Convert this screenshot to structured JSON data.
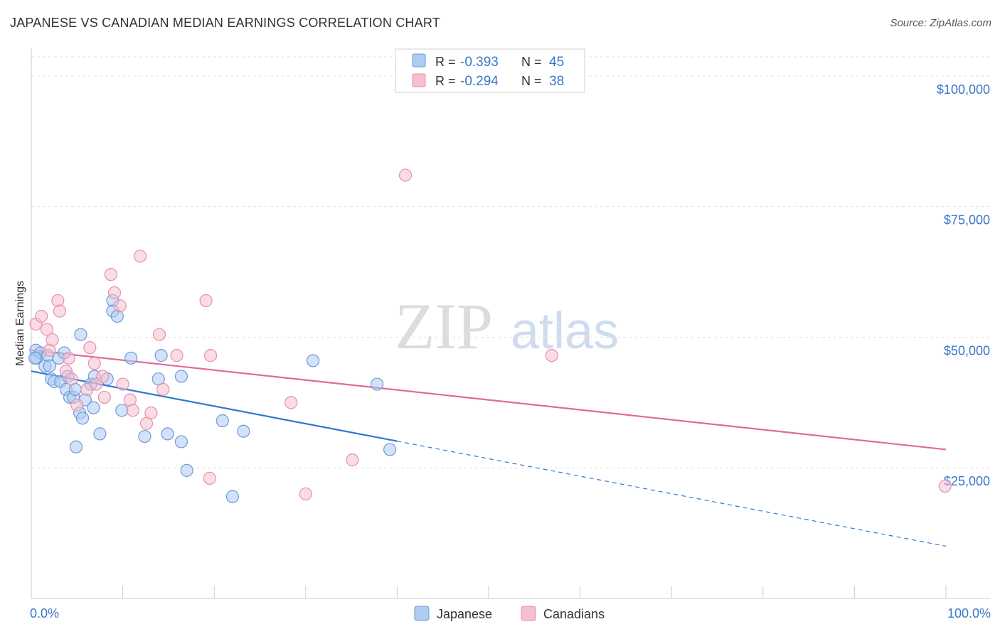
{
  "title": "JAPANESE VS CANADIAN MEDIAN EARNINGS CORRELATION CHART",
  "source": "Source: ZipAtlas.com",
  "watermark": {
    "zip": "ZIP",
    "atlas": "atlas"
  },
  "colors": {
    "japanese_fill": "#aecbf2",
    "japanese_stroke": "#6d9bd8",
    "japanese_line": "#2f78d0",
    "canadian_fill": "#f6bfd0",
    "canadian_stroke": "#e590ae",
    "canadian_line": "#e06b95",
    "axis_label": "#3a78c8",
    "grid": "#e2e2e2"
  },
  "legend": {
    "rows": [
      {
        "r_label": "R = ",
        "r_value": "-0.393",
        "n_label": "N = ",
        "n_value": "45"
      },
      {
        "r_label": "R = ",
        "r_value": "-0.294",
        "n_label": "N = ",
        "n_value": "38"
      }
    ],
    "bottom": [
      "Japanese",
      "Canadians"
    ]
  },
  "chart_data": {
    "type": "scatter",
    "xlabel": "",
    "ylabel": "Median Earnings",
    "xlim": [
      0,
      100
    ],
    "ylim": [
      0,
      105000
    ],
    "x_tick_labels": [
      "0.0%",
      "100.0%"
    ],
    "y_ticks": [
      25000,
      50000,
      75000,
      100000
    ],
    "y_tick_labels": [
      "$25,000",
      "$50,000",
      "$75,000",
      "$100,000"
    ],
    "grid": true,
    "series": [
      {
        "name": "Japanese",
        "points": [
          [
            0.5,
            47500
          ],
          [
            0.6,
            46000
          ],
          [
            1.0,
            47000
          ],
          [
            1.5,
            44500
          ],
          [
            1.8,
            46500
          ],
          [
            2.0,
            44500
          ],
          [
            2.2,
            42000
          ],
          [
            2.5,
            41500
          ],
          [
            3.0,
            46000
          ],
          [
            3.2,
            41500
          ],
          [
            3.6,
            47000
          ],
          [
            3.8,
            40000
          ],
          [
            4.0,
            42500
          ],
          [
            4.2,
            38500
          ],
          [
            4.6,
            38500
          ],
          [
            4.8,
            40000
          ],
          [
            4.9,
            29000
          ],
          [
            5.3,
            35500
          ],
          [
            5.4,
            50500
          ],
          [
            5.6,
            34500
          ],
          [
            5.9,
            38000
          ],
          [
            6.5,
            41000
          ],
          [
            6.8,
            36500
          ],
          [
            6.9,
            42500
          ],
          [
            7.5,
            31500
          ],
          [
            8.3,
            42000
          ],
          [
            8.9,
            57000
          ],
          [
            8.9,
            55000
          ],
          [
            9.4,
            54000
          ],
          [
            9.9,
            36000
          ],
          [
            10.9,
            46000
          ],
          [
            12.4,
            31000
          ],
          [
            13.9,
            42000
          ],
          [
            14.2,
            46500
          ],
          [
            14.9,
            31500
          ],
          [
            16.4,
            42500
          ],
          [
            16.4,
            30000
          ],
          [
            17.0,
            24500
          ],
          [
            20.9,
            34000
          ],
          [
            22.0,
            19500
          ],
          [
            23.2,
            32000
          ],
          [
            30.8,
            45500
          ],
          [
            37.8,
            41000
          ],
          [
            39.2,
            28500
          ],
          [
            0.4,
            46000
          ]
        ]
      },
      {
        "name": "Canadians",
        "points": [
          [
            0.5,
            52500
          ],
          [
            1.1,
            54000
          ],
          [
            1.7,
            51500
          ],
          [
            2.0,
            47500
          ],
          [
            2.3,
            49500
          ],
          [
            2.9,
            57000
          ],
          [
            3.1,
            55000
          ],
          [
            3.8,
            43500
          ],
          [
            4.1,
            46000
          ],
          [
            4.4,
            42000
          ],
          [
            5.0,
            37000
          ],
          [
            6.1,
            40000
          ],
          [
            6.4,
            48000
          ],
          [
            6.9,
            45000
          ],
          [
            7.1,
            41000
          ],
          [
            7.8,
            42500
          ],
          [
            8.0,
            38500
          ],
          [
            8.7,
            62000
          ],
          [
            9.1,
            58500
          ],
          [
            9.7,
            56000
          ],
          [
            10.0,
            41000
          ],
          [
            10.8,
            38000
          ],
          [
            11.1,
            36000
          ],
          [
            11.9,
            65500
          ],
          [
            12.6,
            33500
          ],
          [
            13.1,
            35500
          ],
          [
            14.4,
            40000
          ],
          [
            14.0,
            50500
          ],
          [
            15.9,
            46500
          ],
          [
            19.1,
            57000
          ],
          [
            19.6,
            46500
          ],
          [
            19.5,
            23000
          ],
          [
            28.4,
            37500
          ],
          [
            30.0,
            20000
          ],
          [
            35.1,
            26500
          ],
          [
            40.9,
            81000
          ],
          [
            56.9,
            46500
          ],
          [
            99.9,
            21500
          ]
        ]
      }
    ],
    "trend_lines": [
      {
        "name": "Japanese",
        "x0": 0,
        "y0": 43500,
        "x_solid_end": 40,
        "x1": 100,
        "y1": 10000
      },
      {
        "name": "Canadians",
        "x0": 0,
        "y0": 47500,
        "x1": 100,
        "y1": 28500
      }
    ]
  }
}
